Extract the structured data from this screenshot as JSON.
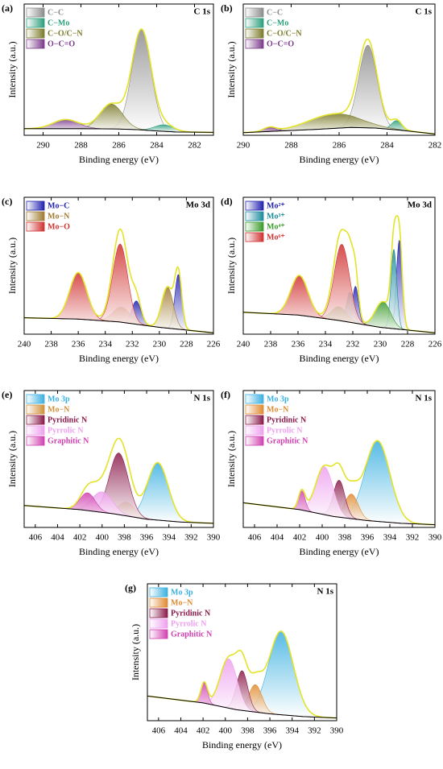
{
  "chart_data": [
    {
      "type": "xps",
      "label": "(a)",
      "title": "C 1s",
      "xlabel": "Binding energy (eV)",
      "ylabel": "Intensity (a.u.)",
      "xlim": [
        291,
        281
      ],
      "xticks": [
        290,
        288,
        286,
        284,
        282
      ],
      "ylim": [
        0,
        100
      ],
      "envelope_color": "#e3e32a",
      "background": {
        "color": "#000000",
        "x": [
          291,
          288,
          286,
          285,
          284,
          283,
          281
        ],
        "values": [
          5,
          5,
          4.8,
          4.3,
          3.3,
          2.5,
          2.2
        ]
      },
      "series": [
        {
          "name": "C−C",
          "color": "#8c8c8c",
          "centers": [
            284.8
          ],
          "heights": [
            76
          ],
          "fwhms": [
            1.2
          ]
        },
        {
          "name": "C−Mo",
          "color": "#2a9d7a",
          "centers": [
            283.6
          ],
          "heights": [
            5
          ],
          "fwhms": [
            1.2
          ]
        },
        {
          "name": "C−O/C−N",
          "color": "#7a7a2a",
          "centers": [
            286.4
          ],
          "heights": [
            19
          ],
          "fwhms": [
            1.4
          ]
        },
        {
          "name": "O−C=O",
          "color": "#7a3a8a",
          "centers": [
            288.8
          ],
          "heights": [
            7
          ],
          "fwhms": [
            1.6
          ]
        }
      ]
    },
    {
      "type": "xps",
      "label": "(b)",
      "title": "C 1s",
      "xlabel": "Binding energy (eV)",
      "ylabel": "Intensity (a.u.)",
      "xlim": [
        290,
        282
      ],
      "xticks": [
        290,
        288,
        286,
        284,
        282
      ],
      "ylim": [
        0,
        100
      ],
      "envelope_color": "#e3e32a",
      "background": {
        "color": "#000000",
        "x": [
          290,
          287,
          285.5,
          284.5,
          283.5,
          282
        ],
        "values": [
          2,
          4.5,
          6,
          5.5,
          4,
          1
        ]
      },
      "series": [
        {
          "name": "C−C",
          "color": "#8c8c8c",
          "centers": [
            284.8
          ],
          "heights": [
            63
          ],
          "fwhms": [
            0.9
          ]
        },
        {
          "name": "C−Mo",
          "color": "#2a9d7a",
          "centers": [
            283.6
          ],
          "heights": [
            7
          ],
          "fwhms": [
            0.5
          ]
        },
        {
          "name": "C−O/C−N",
          "color": "#7a7a2a",
          "centers": [
            286.2
          ],
          "heights": [
            11
          ],
          "fwhms": [
            2.5
          ]
        },
        {
          "name": "O−C=O",
          "color": "#7a3a8a",
          "centers": [
            288.9
          ],
          "heights": [
            3
          ],
          "fwhms": [
            0.6
          ]
        }
      ]
    },
    {
      "type": "xps",
      "label": "(c)",
      "title": "Mo 3d",
      "xlabel": "Binding energy (eV)",
      "ylabel": "Intensity (a.u.)",
      "xlim": [
        240,
        226
      ],
      "xticks": [
        240,
        238,
        236,
        234,
        232,
        230,
        228,
        226
      ],
      "ylim": [
        0,
        100
      ],
      "envelope_color": "#e3e32a",
      "background": {
        "color": "#000000",
        "x": [
          240,
          236,
          233,
          230,
          228,
          226
        ],
        "values": [
          12,
          11,
          9,
          5,
          3,
          1
        ]
      },
      "series": [
        {
          "name": "Mo−C",
          "color": "#2020b0",
          "centers": [
            228.6,
            231.7
          ],
          "heights": [
            40,
            17
          ],
          "fwhms": [
            0.6,
            0.8
          ]
        },
        {
          "name": "Mo−N",
          "color": "#a07a30",
          "centers": [
            229.4,
            232.8
          ],
          "heights": [
            30,
            11
          ],
          "fwhms": [
            1.0,
            1.5
          ]
        },
        {
          "name": "Mo−O",
          "color": "#d03030",
          "centers": [
            232.9,
            236.0
          ],
          "heights": [
            57,
            34
          ],
          "fwhms": [
            1.3,
            1.5
          ]
        }
      ]
    },
    {
      "type": "xps",
      "label": "(d)",
      "title": "Mo 3d",
      "xlabel": "Binding energy (eV)",
      "ylabel": "Intensity (a.u.)",
      "xlim": [
        240,
        226
      ],
      "xticks": [
        240,
        238,
        236,
        234,
        232,
        230,
        228,
        226
      ],
      "ylim": [
        0,
        100
      ],
      "envelope_color": "#e3e32a",
      "background": {
        "color": "#000000",
        "x": [
          240,
          236,
          233,
          230,
          228,
          226
        ],
        "values": [
          16,
          14,
          10,
          5,
          3,
          1
        ]
      },
      "series": [
        {
          "name": "Mo²⁺",
          "color": "#2020b0",
          "centers": [
            228.6,
            231.8
          ],
          "heights": [
            65,
            27
          ],
          "fwhms": [
            0.5,
            0.5
          ]
        },
        {
          "name": "Mo³⁺",
          "color": "#1a8a9a",
          "centers": [
            229.0,
            232.2
          ],
          "heights": [
            58,
            22
          ],
          "fwhms": [
            0.5,
            0.6
          ]
        },
        {
          "name": "Mo⁴⁺",
          "color": "#3a9a2a",
          "centers": [
            229.8,
            233.0
          ],
          "heights": [
            19,
            10
          ],
          "fwhms": [
            1.3,
            1.3
          ]
        },
        {
          "name": "Mo⁶⁺",
          "color": "#d03030",
          "centers": [
            232.8,
            235.9
          ],
          "heights": [
            56,
            29
          ],
          "fwhms": [
            1.3,
            1.5
          ]
        }
      ]
    },
    {
      "type": "xps",
      "label": "(e)",
      "title": "N 1s",
      "xlabel": "Binding energy (eV)",
      "ylabel": "Intensity (a.u.)",
      "xlim": [
        407,
        390
      ],
      "xticks": [
        406,
        404,
        402,
        400,
        398,
        396,
        394,
        392,
        390
      ],
      "ylim": [
        0,
        100
      ],
      "envelope_color": "#e3e32a",
      "background": {
        "color": "#000000",
        "x": [
          407,
          402,
          399,
          396,
          393,
          390
        ],
        "values": [
          16,
          13,
          10,
          6,
          4,
          3
        ]
      },
      "series": [
        {
          "name": "Mo 3p",
          "color": "#3ab0e0",
          "centers": [
            395.0
          ],
          "heights": [
            42
          ],
          "fwhms": [
            2.2
          ]
        },
        {
          "name": "Mo−N",
          "color": "#d0903a",
          "centers": [
            397.8
          ],
          "heights": [
            10
          ],
          "fwhms": [
            1.8
          ]
        },
        {
          "name": "Pyridinic N",
          "color": "#8a1a4a",
          "centers": [
            398.5
          ],
          "heights": [
            45
          ],
          "fwhms": [
            2.0
          ]
        },
        {
          "name": "Pyrrolic N",
          "color": "#eea0ee",
          "centers": [
            400.0
          ],
          "heights": [
            15
          ],
          "fwhms": [
            2.2
          ]
        },
        {
          "name": "Graphitic N",
          "color": "#d040b0",
          "centers": [
            401.3
          ],
          "heights": [
            13
          ],
          "fwhms": [
            1.6
          ]
        }
      ]
    },
    {
      "type": "xps",
      "label": "(f)",
      "title": "N 1s",
      "xlabel": "Binding energy (eV)",
      "ylabel": "Intensity (a.u.)",
      "xlim": [
        407,
        390
      ],
      "xticks": [
        406,
        404,
        402,
        400,
        398,
        396,
        394,
        392,
        390
      ],
      "ylim": [
        0,
        100
      ],
      "envelope_color": "#e3e32a",
      "background": {
        "color": "#000000",
        "x": [
          407,
          402,
          399,
          396,
          393,
          390
        ],
        "values": [
          18,
          13,
          8,
          5,
          3,
          2
        ]
      },
      "series": [
        {
          "name": "Mo 3p",
          "color": "#3ab0e0",
          "centers": [
            395.1
          ],
          "heights": [
            59
          ],
          "fwhms": [
            2.6
          ]
        },
        {
          "name": "Mo−N",
          "color": "#e08a30",
          "centers": [
            397.4
          ],
          "heights": [
            18
          ],
          "fwhms": [
            1.4
          ]
        },
        {
          "name": "Pyridinic N",
          "color": "#8a1a4a",
          "centers": [
            398.5
          ],
          "heights": [
            27
          ],
          "fwhms": [
            1.2
          ]
        },
        {
          "name": "Pyrrolic N",
          "color": "#eea0ee",
          "centers": [
            399.8
          ],
          "heights": [
            35
          ],
          "fwhms": [
            1.8
          ]
        },
        {
          "name": "Graphitic N",
          "color": "#d040b0",
          "centers": [
            401.8
          ],
          "heights": [
            14
          ],
          "fwhms": [
            0.7
          ]
        }
      ]
    },
    {
      "type": "xps",
      "label": "(g)",
      "title": "N 1s",
      "xlabel": "Binding energy (eV)",
      "ylabel": "Intensity (a.u.)",
      "xlim": [
        407,
        390
      ],
      "xticks": [
        406,
        404,
        402,
        400,
        398,
        396,
        394,
        392,
        390
      ],
      "ylim": [
        0,
        100
      ],
      "envelope_color": "#e3e32a",
      "background": {
        "color": "#000000",
        "x": [
          407,
          402,
          399,
          396,
          393,
          390
        ],
        "values": [
          18,
          13,
          8,
          5,
          3,
          2
        ]
      },
      "series": [
        {
          "name": "Mo 3p",
          "color": "#3ab0e0",
          "centers": [
            395.0
          ],
          "heights": [
            61
          ],
          "fwhms": [
            2.6
          ]
        },
        {
          "name": "Mo−N",
          "color": "#e08a30",
          "centers": [
            397.3
          ],
          "heights": [
            20
          ],
          "fwhms": [
            1.4
          ]
        },
        {
          "name": "Pyridinic N",
          "color": "#8a1a4a",
          "centers": [
            398.5
          ],
          "heights": [
            29
          ],
          "fwhms": [
            1.2
          ]
        },
        {
          "name": "Pyrrolic N",
          "color": "#eea0ee",
          "centers": [
            399.7
          ],
          "heights": [
            36
          ],
          "fwhms": [
            1.8
          ]
        },
        {
          "name": "Graphitic N",
          "color": "#d040b0",
          "centers": [
            401.9
          ],
          "heights": [
            15
          ],
          "fwhms": [
            0.7
          ]
        }
      ]
    }
  ]
}
